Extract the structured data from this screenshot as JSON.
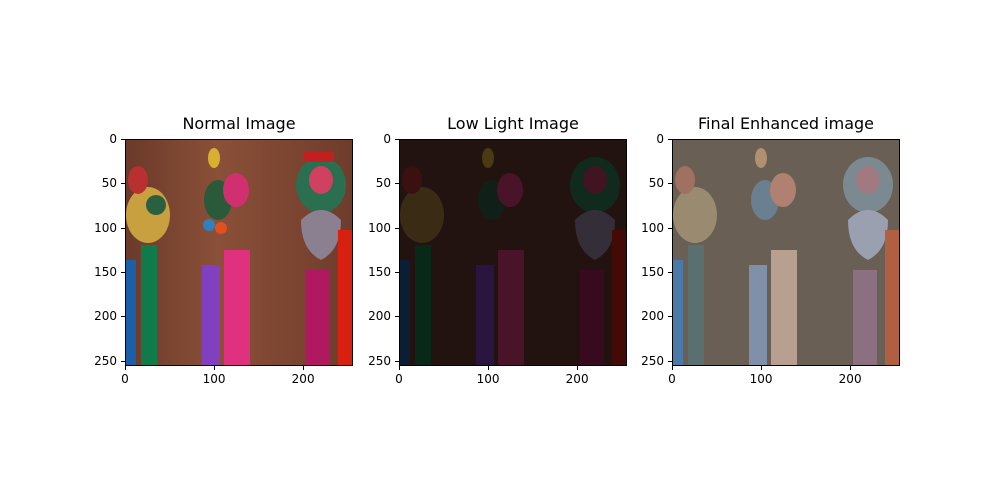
{
  "panels": [
    {
      "title": "Normal Image"
    },
    {
      "title": "Low Light Image"
    },
    {
      "title": "Final Enhanced image"
    }
  ],
  "axes": {
    "x_ticks": [
      "0",
      "100",
      "200"
    ],
    "y_ticks": [
      "0",
      "50",
      "100",
      "150",
      "200",
      "250"
    ]
  },
  "colors": {
    "normal_background": "#7a4530",
    "low_background": "#231310",
    "enhanced_background": "#6a5f55"
  }
}
